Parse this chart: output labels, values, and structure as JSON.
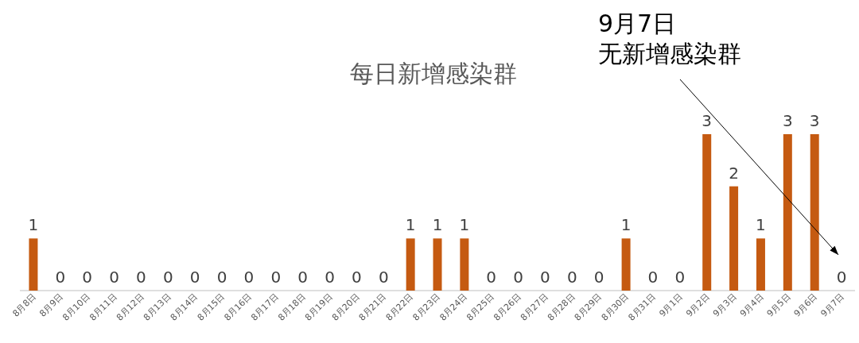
{
  "chart_data": {
    "type": "bar",
    "title": "每日新增感染群",
    "categories": [
      "8月8日",
      "8月9日",
      "8月10日",
      "8月11日",
      "8月12日",
      "8月13日",
      "8月14日",
      "8月15日",
      "8月16日",
      "8月17日",
      "8月18日",
      "8月19日",
      "8月20日",
      "8月21日",
      "8月22日",
      "8月23日",
      "8月24日",
      "8月25日",
      "8月26日",
      "8月27日",
      "8月28日",
      "8月29日",
      "8月30日",
      "8月31日",
      "9月1日",
      "9月2日",
      "9月3日",
      "9月4日",
      "9月5日",
      "9月6日",
      "9月7日"
    ],
    "values": [
      1,
      0,
      0,
      0,
      0,
      0,
      0,
      0,
      0,
      0,
      0,
      0,
      0,
      0,
      1,
      1,
      1,
      0,
      0,
      0,
      0,
      0,
      1,
      0,
      0,
      3,
      2,
      1,
      3,
      3,
      0
    ],
    "color": "#c55a11",
    "data_labels": true,
    "annotations": [
      "9月7日",
      "无新增感染群"
    ]
  }
}
